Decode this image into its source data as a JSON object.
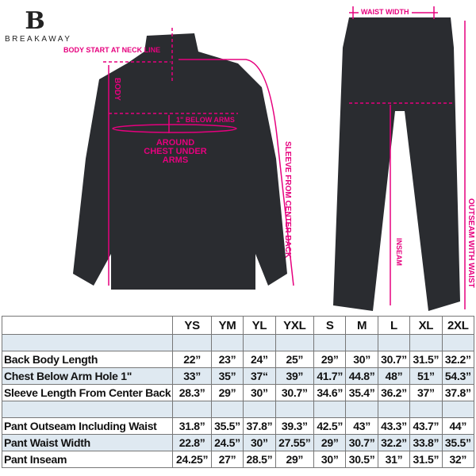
{
  "brand": {
    "name": "BREAKAWAY",
    "logo_letter": "B"
  },
  "annotations": {
    "body_start": "BODY START AT NECK LINE",
    "body": "BODY",
    "below_arms": "1\" BELOW ARMS",
    "around_chest": "AROUND CHEST UNDER ARMS",
    "sleeve": "SLEEVE FROM CENTER BACK",
    "waist_width": "WAIST WIDTH",
    "inseam": "INSEAM",
    "outseam": "OUTSEAM WITH WAIST"
  },
  "colors": {
    "accent": "#e6007e",
    "garment": "#2a2c30",
    "row_shade": "#dfe9f1"
  },
  "size_chart": {
    "sizes": [
      "YS",
      "YM",
      "YL",
      "YXL",
      "S",
      "M",
      "L",
      "XL",
      "2XL"
    ],
    "rows": [
      {
        "label": "",
        "values": [
          "",
          "",
          "",
          "",
          "",
          "",
          "",
          "",
          ""
        ],
        "shaded": true
      },
      {
        "label": "Back Body Length",
        "values": [
          "22”",
          "23”",
          "24”",
          "25”",
          "29”",
          "30”",
          "30.7”",
          "31.5”",
          "32.2”"
        ],
        "shaded": false
      },
      {
        "label": "Chest Below Arm Hole 1\"",
        "values": [
          "33”",
          "35”",
          "37“",
          "39”",
          "41.7”",
          "44.8”",
          "48”",
          "51”",
          "54.3”"
        ],
        "shaded": true
      },
      {
        "label": "Sleeve Length From Center Back",
        "values": [
          "28.3”",
          "29”",
          "30”",
          "30.7”",
          "34.6”",
          "35.4”",
          "36.2”",
          "37”",
          "37.8”"
        ],
        "shaded": false
      },
      {
        "label": "",
        "values": [
          "",
          "",
          "",
          "",
          "",
          "",
          "",
          "",
          ""
        ],
        "shaded": true
      },
      {
        "label": "Pant Outseam Including Waist",
        "values": [
          "31.8”",
          "35.5”",
          "37.8”",
          "39.3”",
          "42.5”",
          "43”",
          "43.3”",
          "43.7”",
          "44”"
        ],
        "shaded": false
      },
      {
        "label": "Pant Waist Width",
        "values": [
          "22.8”",
          "24.5”",
          "30”",
          "27.55”",
          "29”",
          "30.7”",
          "32.2”",
          "33.8”",
          "35.5”"
        ],
        "shaded": true
      },
      {
        "label": "Pant Inseam",
        "values": [
          "24.25”",
          "27”",
          "28.5”",
          "29”",
          "30”",
          "30.5”",
          "31”",
          "31.5”",
          "32”"
        ],
        "shaded": false
      }
    ]
  }
}
